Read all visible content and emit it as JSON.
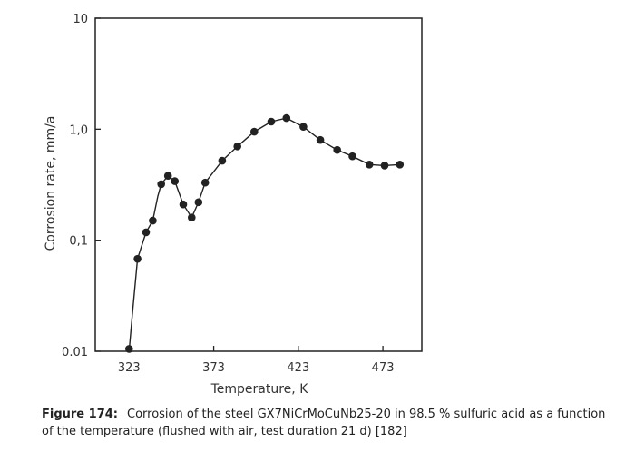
{
  "chart_data": {
    "type": "line",
    "xlabel": "Temperature, K",
    "ylabel": "Corrosion rate, mm/a",
    "xlim": [
      303,
      496
    ],
    "ylim": [
      0.01,
      10
    ],
    "y_scale": "log",
    "x_ticks": [
      323,
      373,
      423,
      473
    ],
    "x_tick_labels": [
      "323",
      "373",
      "423",
      "473"
    ],
    "y_ticks": [
      0.01,
      0.1,
      1.0,
      10
    ],
    "y_tick_labels": [
      "0.01",
      "0,1",
      "1,0",
      "10"
    ],
    "grid": false,
    "series": [
      {
        "points": [
          [
            323,
            0.0105
          ],
          [
            328,
            0.068
          ],
          [
            333,
            0.118
          ],
          [
            337,
            0.15
          ],
          [
            342,
            0.32
          ],
          [
            346,
            0.38
          ],
          [
            350,
            0.34
          ],
          [
            355,
            0.21
          ],
          [
            360,
            0.16
          ],
          [
            364,
            0.22
          ],
          [
            368,
            0.33
          ],
          [
            378,
            0.52
          ],
          [
            387,
            0.7
          ],
          [
            397,
            0.95
          ],
          [
            407,
            1.17
          ],
          [
            416,
            1.26
          ],
          [
            426,
            1.05
          ],
          [
            436,
            0.8
          ],
          [
            446,
            0.65
          ],
          [
            455,
            0.57
          ],
          [
            465,
            0.48
          ],
          [
            474,
            0.47
          ],
          [
            483,
            0.48
          ]
        ],
        "curve": [
          [
            325,
            0.022
          ],
          [
            328,
            0.068
          ],
          [
            333,
            0.118
          ],
          [
            337,
            0.15
          ],
          [
            340,
            0.25
          ],
          [
            342,
            0.32
          ],
          [
            346,
            0.38
          ],
          [
            350,
            0.34
          ],
          [
            355,
            0.21
          ],
          [
            360,
            0.16
          ],
          [
            364,
            0.22
          ],
          [
            368,
            0.33
          ],
          [
            378,
            0.52
          ],
          [
            387,
            0.7
          ],
          [
            397,
            0.95
          ],
          [
            407,
            1.17
          ],
          [
            416,
            1.26
          ],
          [
            426,
            1.05
          ],
          [
            436,
            0.8
          ],
          [
            446,
            0.65
          ],
          [
            455,
            0.57
          ],
          [
            465,
            0.48
          ],
          [
            474,
            0.47
          ],
          [
            483,
            0.48
          ]
        ],
        "color": "#222222"
      }
    ]
  },
  "caption": {
    "label": "Figure 174:",
    "text": "Corrosion of the steel GX7NiCrMoCuNb25-20 in 98.5 % sulfuric acid as a function of the temperature (flushed with air, test duration 21 d) [182]"
  }
}
